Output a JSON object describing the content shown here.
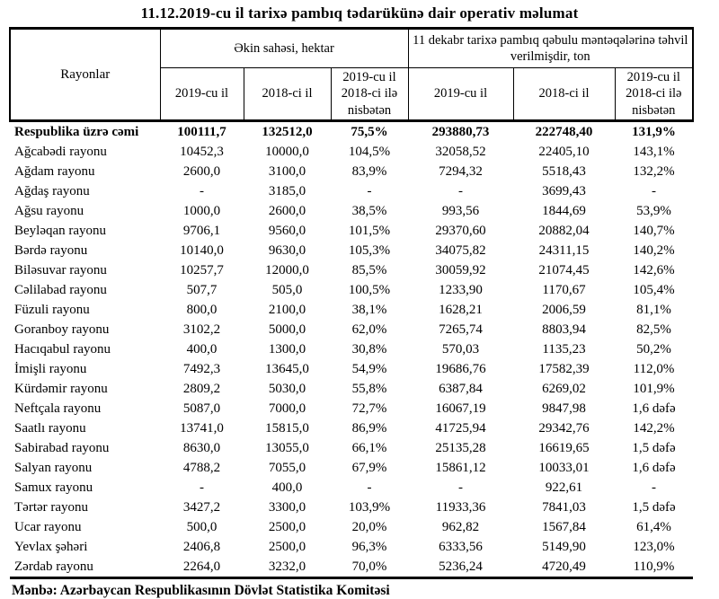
{
  "page": {
    "title": "11.12.2019-cu il tarixə pambıq tədarükünə dair operativ məlumat",
    "source_note": "Mənbə: Azərbaycan Respublikasının Dövlət Statistika Komitəsi"
  },
  "colors": {
    "text": "#000000",
    "background": "#ffffff",
    "border": "#000000"
  },
  "table": {
    "corner_header": "Rayonlar",
    "group_headers": [
      "Əkin sahəsi, hektar",
      "11 dekabr tarixə pambıq qəbulu məntəqələrinə təhvil verilmişdir, ton"
    ],
    "sub_headers": [
      "2019-cu il",
      "2018-ci il",
      "2019-cu il 2018-ci ilə nisbətən",
      "2019-cu il",
      "2018-ci il",
      "2019-cu il 2018-ci ilə nisbətən"
    ],
    "total_row": {
      "name": "Respublika üzrə cəmi",
      "values": [
        "100111,7",
        "132512,0",
        "75,5%",
        "293880,73",
        "222748,40",
        "131,9%"
      ]
    },
    "rows": [
      {
        "name": "Ağcabədi rayonu",
        "values": [
          "10452,3",
          "10000,0",
          "104,5%",
          "32058,52",
          "22405,10",
          "143,1%"
        ]
      },
      {
        "name": "Ağdam rayonu",
        "values": [
          "2600,0",
          "3100,0",
          "83,9%",
          "7294,32",
          "5518,43",
          "132,2%"
        ]
      },
      {
        "name": "Ağdaş rayonu",
        "values": [
          "-",
          "3185,0",
          "-",
          "-",
          "3699,43",
          "-"
        ]
      },
      {
        "name": "Ağsu rayonu",
        "values": [
          "1000,0",
          "2600,0",
          "38,5%",
          "993,56",
          "1844,69",
          "53,9%"
        ]
      },
      {
        "name": "Beyləqan rayonu",
        "values": [
          "9706,1",
          "9560,0",
          "101,5%",
          "29370,60",
          "20882,04",
          "140,7%"
        ]
      },
      {
        "name": "Bərdə rayonu",
        "values": [
          "10140,0",
          "9630,0",
          "105,3%",
          "34075,82",
          "24311,15",
          "140,2%"
        ]
      },
      {
        "name": "Biləsuvar rayonu",
        "values": [
          "10257,7",
          "12000,0",
          "85,5%",
          "30059,92",
          "21074,45",
          "142,6%"
        ]
      },
      {
        "name": "Cəlilabad rayonu",
        "values": [
          "507,7",
          "505,0",
          "100,5%",
          "1233,90",
          "1170,67",
          "105,4%"
        ]
      },
      {
        "name": "Füzuli rayonu",
        "values": [
          "800,0",
          "2100,0",
          "38,1%",
          "1628,21",
          "2006,59",
          "81,1%"
        ]
      },
      {
        "name": "Goranboy rayonu",
        "values": [
          "3102,2",
          "5000,0",
          "62,0%",
          "7265,74",
          "8803,94",
          "82,5%"
        ]
      },
      {
        "name": "Hacıqabul rayonu",
        "values": [
          "400,0",
          "1300,0",
          "30,8%",
          "570,03",
          "1135,23",
          "50,2%"
        ]
      },
      {
        "name": "İmişli rayonu",
        "values": [
          "7492,3",
          "13645,0",
          "54,9%",
          "19686,76",
          "17582,39",
          "112,0%"
        ]
      },
      {
        "name": "Kürdəmir rayonu",
        "values": [
          "2809,2",
          "5030,0",
          "55,8%",
          "6387,84",
          "6269,02",
          "101,9%"
        ]
      },
      {
        "name": "Neftçala rayonu",
        "values": [
          "5087,0",
          "7000,0",
          "72,7%",
          "16067,19",
          "9847,98",
          "1,6 dəfə"
        ]
      },
      {
        "name": "Saatlı rayonu",
        "values": [
          "13741,0",
          "15815,0",
          "86,9%",
          "41725,94",
          "29342,76",
          "142,2%"
        ]
      },
      {
        "name": "Sabirabad rayonu",
        "values": [
          "8630,0",
          "13055,0",
          "66,1%",
          "25135,28",
          "16619,65",
          "1,5 dəfə"
        ]
      },
      {
        "name": "Salyan rayonu",
        "values": [
          "4788,2",
          "7055,0",
          "67,9%",
          "15861,12",
          "10033,01",
          "1,6 dəfə"
        ]
      },
      {
        "name": "Samux rayonu",
        "values": [
          "-",
          "400,0",
          "-",
          "-",
          "922,61",
          "-"
        ]
      },
      {
        "name": "Tərtər rayonu",
        "values": [
          "3427,2",
          "3300,0",
          "103,9%",
          "11933,36",
          "7841,03",
          "1,5 dəfə"
        ]
      },
      {
        "name": "Ucar rayonu",
        "values": [
          "500,0",
          "2500,0",
          "20,0%",
          "962,82",
          "1567,84",
          "61,4%"
        ]
      },
      {
        "name": "Yevlax şəhəri",
        "values": [
          "2406,8",
          "2500,0",
          "96,3%",
          "6333,56",
          "5149,90",
          "123,0%"
        ]
      },
      {
        "name": "Zərdab rayonu",
        "values": [
          "2264,0",
          "3232,0",
          "70,0%",
          "5236,24",
          "4720,49",
          "110,9%"
        ]
      }
    ]
  }
}
